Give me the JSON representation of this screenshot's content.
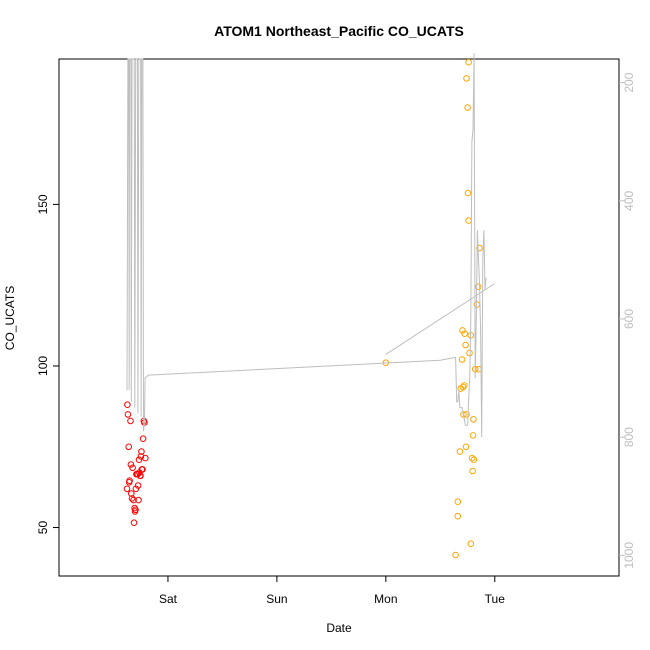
{
  "chart_data": {
    "type": "scatter",
    "title": "ATOM1 Northeast_Pacific CO_UCATS",
    "xlabel": "Date",
    "ylabel": "CO_UCATS",
    "x_unit": "days",
    "xlim": [
      -1.5,
      1.07
    ],
    "ylim": [
      35,
      195
    ],
    "x_ticks": [
      {
        "value": -1,
        "label": "Sat"
      },
      {
        "value": -0.5,
        "label": "Sun"
      },
      {
        "value": 0,
        "label": "Mon"
      },
      {
        "value": 0.5,
        "label": "Tue"
      }
    ],
    "y_ticks": [
      50,
      100,
      150
    ],
    "y2_axis": {
      "color": "#bebebe",
      "reversed": true,
      "lim": [
        1035,
        160
      ],
      "ticks": [
        200,
        400,
        600,
        800,
        1000
      ]
    },
    "series": [
      {
        "color": "#ff0000",
        "points": [
          [
            -1.188,
            62
          ],
          [
            -1.186,
            88
          ],
          [
            -1.184,
            85
          ],
          [
            -1.18,
            75
          ],
          [
            -1.178,
            64
          ],
          [
            -1.176,
            64.5
          ],
          [
            -1.172,
            83
          ],
          [
            -1.17,
            69.5
          ],
          [
            -1.168,
            60.5
          ],
          [
            -1.165,
            59
          ],
          [
            -1.162,
            68.5
          ],
          [
            -1.158,
            58.5
          ],
          [
            -1.156,
            51.5
          ],
          [
            -1.153,
            56
          ],
          [
            -1.151,
            55
          ],
          [
            -1.149,
            55.5
          ],
          [
            -1.147,
            62
          ],
          [
            -1.145,
            66.5
          ],
          [
            -1.142,
            66.5
          ],
          [
            -1.139,
            66.5
          ],
          [
            -1.137,
            63
          ],
          [
            -1.135,
            58.5
          ],
          [
            -1.133,
            71
          ],
          [
            -1.131,
            67
          ],
          [
            -1.128,
            66
          ],
          [
            -1.126,
            66
          ],
          [
            -1.124,
            72
          ],
          [
            -1.122,
            73.5
          ],
          [
            -1.12,
            68
          ],
          [
            -1.117,
            68
          ],
          [
            -1.114,
            77.5
          ],
          [
            -1.111,
            83
          ],
          [
            -1.108,
            82.5
          ],
          [
            -1.104,
            71.5
          ]
        ]
      },
      {
        "color": "#ffa500",
        "points": [
          [
            0.0,
            101
          ],
          [
            0.32,
            41.5
          ],
          [
            0.33,
            58
          ],
          [
            0.33,
            53.5
          ],
          [
            0.34,
            73.5
          ],
          [
            0.344,
            93
          ],
          [
            0.35,
            102
          ],
          [
            0.352,
            111
          ],
          [
            0.354,
            93.5
          ],
          [
            0.356,
            85
          ],
          [
            0.36,
            94
          ],
          [
            0.362,
            110
          ],
          [
            0.366,
            106.5
          ],
          [
            0.368,
            75
          ],
          [
            0.37,
            85
          ],
          [
            0.37,
            189
          ],
          [
            0.375,
            180
          ],
          [
            0.377,
            153.5
          ],
          [
            0.38,
            145
          ],
          [
            0.38,
            194
          ],
          [
            0.384,
            104
          ],
          [
            0.39,
            45
          ],
          [
            0.39,
            109.5
          ],
          [
            0.396,
            71.5
          ],
          [
            0.398,
            67.5
          ],
          [
            0.4,
            78.5
          ],
          [
            0.402,
            83.5
          ],
          [
            0.404,
            71
          ],
          [
            0.41,
            99
          ],
          [
            0.418,
            119
          ],
          [
            0.424,
            124.5
          ],
          [
            0.426,
            99
          ],
          [
            0.43,
            136.5
          ]
        ]
      },
      {
        "color": "#bebebe",
        "line": true,
        "axis": "y2",
        "points": [
          [
            -1.19,
            720
          ],
          [
            -1.188,
            720
          ],
          [
            -1.184,
            160
          ],
          [
            -1.18,
            160
          ],
          [
            -1.178,
            720
          ],
          [
            -1.176,
            160
          ],
          [
            -1.17,
            160
          ],
          [
            -1.168,
            740
          ],
          [
            -1.165,
            160
          ],
          [
            -1.155,
            160
          ],
          [
            -1.152,
            750
          ],
          [
            -1.148,
            160
          ],
          [
            -1.14,
            160
          ],
          [
            -1.138,
            760
          ],
          [
            -1.134,
            160
          ],
          [
            -1.125,
            160
          ],
          [
            -1.123,
            765
          ],
          [
            -1.12,
            160
          ],
          [
            -1.115,
            160
          ],
          [
            -1.112,
            790
          ],
          [
            -1.108,
            778
          ],
          [
            -1.105,
            700
          ],
          [
            -1.09,
            695
          ],
          [
            0.25,
            670
          ],
          [
            0.32,
            665
          ],
          [
            0.325,
            740
          ],
          [
            0.33,
            740
          ],
          [
            0.335,
            720
          ],
          [
            0.34,
            750
          ],
          [
            0.35,
            750
          ],
          [
            0.355,
            760
          ],
          [
            0.36,
            770
          ],
          [
            0.365,
            780
          ],
          [
            0.375,
            780
          ],
          [
            0.38,
            740
          ],
          [
            0.385,
            700
          ],
          [
            0.39,
            600
          ],
          [
            0.395,
            300
          ],
          [
            0.4,
            280
          ],
          [
            0.405,
            150
          ],
          [
            0.41,
            700
          ],
          [
            0.415,
            600
          ],
          [
            0.42,
            450
          ],
          [
            0.425,
            500
          ],
          [
            0.43,
            540
          ],
          [
            0.435,
            620
          ],
          [
            0.44,
            800
          ],
          [
            0.445,
            500
          ],
          [
            0.45,
            450
          ],
          [
            0.455,
            550
          ],
          [
            0.46,
            530
          ]
        ]
      },
      {
        "color": "#bebebe",
        "line": true,
        "axis": "y2",
        "points": [
          [
            0.0,
            660
          ],
          [
            0.5,
            540
          ]
        ]
      }
    ]
  }
}
